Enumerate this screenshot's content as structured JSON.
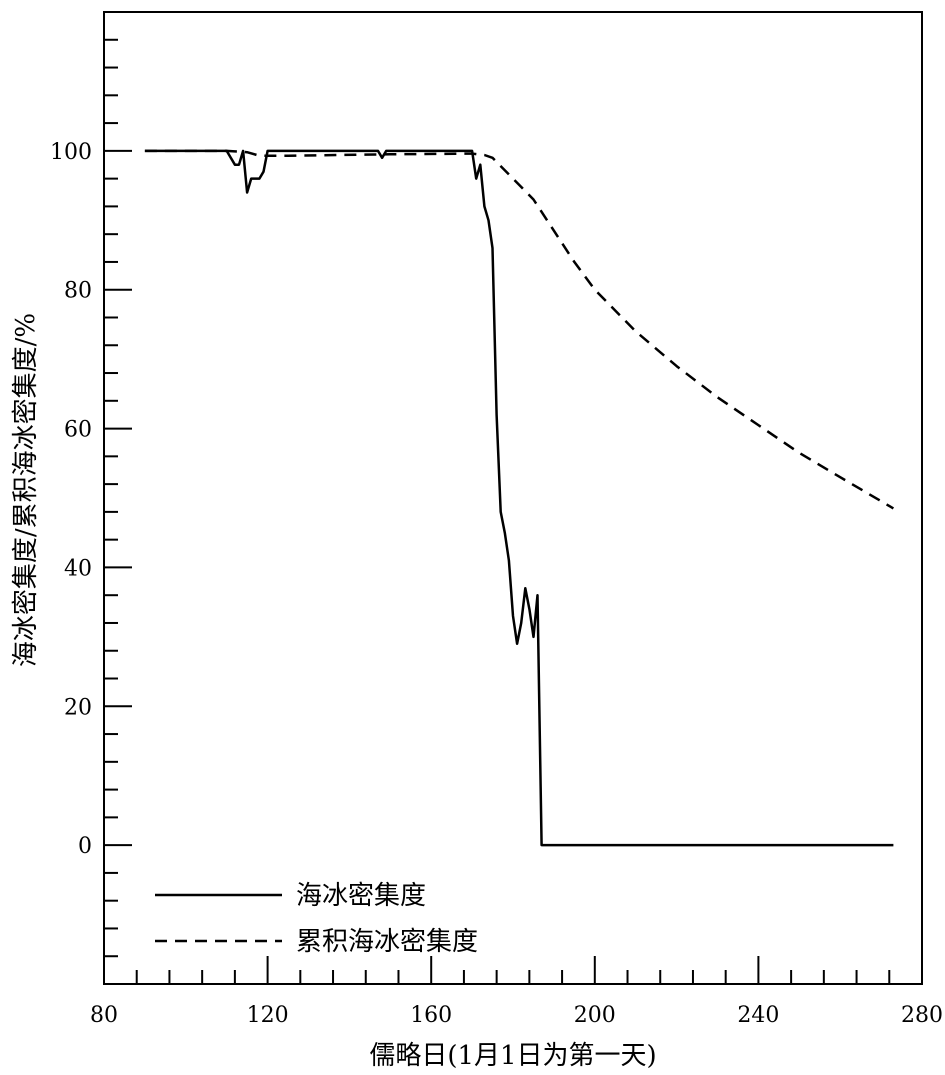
{
  "chart_data": {
    "type": "line",
    "title": "",
    "xlabel": "儒略日(1月1日为第一天)",
    "ylabel": "海冰密集度/累积海冰密集度/%",
    "xlim": [
      80,
      280
    ],
    "ylim": [
      -20,
      120
    ],
    "x_ticks": [
      80,
      120,
      160,
      200,
      240,
      280
    ],
    "y_ticks": [
      0,
      20,
      40,
      60,
      80,
      100
    ],
    "grid": false,
    "legend_position": "bottom-left",
    "series": [
      {
        "name": "海冰密集度",
        "style": "solid",
        "color": "#000000",
        "x": [
          90,
          110,
          112,
          113,
          114,
          115,
          116,
          117,
          118,
          119,
          120,
          121,
          122,
          130,
          140,
          147,
          148,
          149,
          150,
          160,
          170,
          171,
          172,
          173,
          174,
          175,
          176,
          177,
          178,
          179,
          180,
          181,
          182,
          183,
          184,
          185,
          186,
          187,
          190,
          200,
          220,
          240,
          260,
          273
        ],
        "y": [
          100,
          100,
          98,
          98,
          100,
          94,
          96,
          96,
          96,
          97,
          100,
          100,
          100,
          100,
          100,
          100,
          99,
          100,
          100,
          100,
          100,
          96,
          98,
          92,
          90,
          86,
          62,
          48,
          45,
          41,
          33,
          29,
          32,
          37,
          34,
          30,
          36,
          0,
          0,
          0,
          0,
          0,
          0,
          0
        ]
      },
      {
        "name": "累积海冰密集度",
        "style": "dashed",
        "color": "#000000",
        "x": [
          90,
          110,
          115,
          118,
          125,
          150,
          170,
          173,
          175,
          180,
          185,
          190,
          195,
          200,
          210,
          220,
          230,
          240,
          250,
          260,
          273
        ],
        "y": [
          100,
          100,
          99.8,
          99.3,
          99.3,
          99.5,
          99.6,
          99.4,
          99,
          96,
          93,
          88.5,
          84,
          80,
          74,
          69,
          64.5,
          60.5,
          56.5,
          53,
          48.5
        ]
      }
    ]
  }
}
